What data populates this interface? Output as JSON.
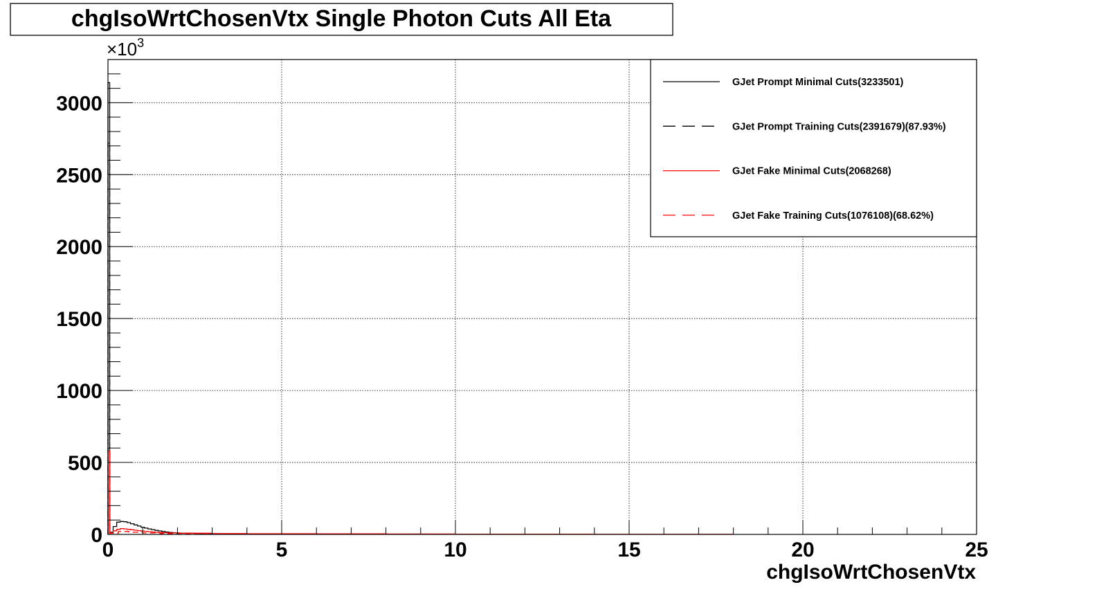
{
  "chart_data": {
    "type": "histogram",
    "title": "chgIsoWrtChosenVtx Single Photon Cuts All Eta",
    "xlabel": "chgIsoWrtChosenVtx",
    "ylabel": "",
    "y_multiplier": "×10",
    "y_multiplier_exp": "3",
    "xlim": [
      0,
      25
    ],
    "ylim": [
      0,
      3300
    ],
    "xticks": [
      0,
      5,
      10,
      15,
      20,
      25
    ],
    "yticks": [
      0,
      500,
      1000,
      1500,
      2000,
      2500,
      3000
    ],
    "grid": true,
    "legend_position": "top-right",
    "series": [
      {
        "name": "GJet Prompt Minimal Cuts(3233501)",
        "color": "#000000",
        "dash": "solid",
        "x": [
          0,
          0.05,
          0.15,
          0.25,
          0.35,
          0.45,
          0.55,
          0.65,
          0.75,
          0.85,
          0.95,
          1.05,
          1.15,
          1.25,
          1.35,
          1.45,
          1.55,
          1.65,
          1.75,
          1.85,
          1.95,
          2.05,
          2.5,
          3.0,
          3.5,
          4.0,
          5.0,
          6.0,
          8.0,
          10.0,
          12.5
        ],
        "y": [
          3140,
          15,
          55,
          85,
          90,
          88,
          82,
          74,
          66,
          58,
          50,
          44,
          38,
          33,
          28,
          24,
          20,
          17,
          14,
          12,
          10,
          8,
          5,
          4,
          3,
          2,
          1.5,
          1,
          0.6,
          0.3,
          0
        ]
      },
      {
        "name": "GJet Prompt Training Cuts(2391679)(87.93%)",
        "color": "#000000",
        "dash": "dashed",
        "x": [
          0,
          0.05
        ],
        "y": [
          2720,
          0
        ]
      },
      {
        "name": "GJet Fake Minimal Cuts(2068268)",
        "color": "#ff0000",
        "dash": "solid",
        "x": [
          0,
          0.05,
          0.15,
          0.25,
          0.35,
          0.45,
          0.55,
          0.65,
          0.75,
          0.85,
          0.95,
          1.05,
          1.15,
          1.25,
          1.35,
          1.45,
          1.55,
          1.75,
          2.05,
          3.0,
          4.0,
          6.0,
          8.0,
          10.0,
          14.0,
          18.0
        ],
        "y": [
          580,
          10,
          25,
          35,
          40,
          38,
          35,
          32,
          29,
          26,
          23,
          21,
          19,
          17,
          15,
          13,
          12,
          10,
          8,
          6,
          5,
          4,
          3,
          2,
          1,
          0
        ]
      },
      {
        "name": "GJet Fake Training Cuts(1076108)(68.62%)",
        "color": "#ff0000",
        "dash": "dashed",
        "x": [
          0,
          0.05,
          0.3,
          0.6,
          1.0,
          1.5,
          2.0,
          3.0
        ],
        "y": [
          410,
          8,
          20,
          15,
          10,
          6,
          4,
          0
        ]
      }
    ]
  }
}
